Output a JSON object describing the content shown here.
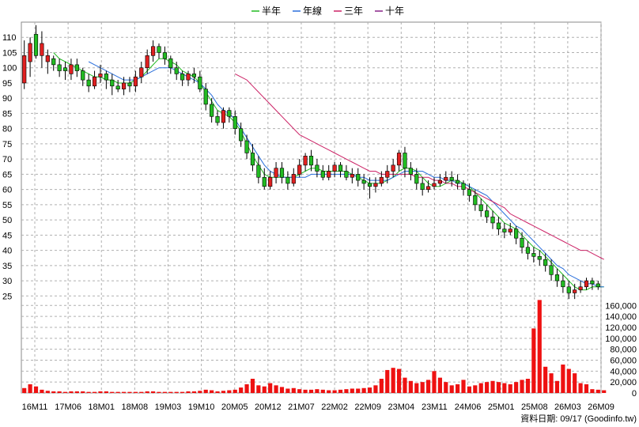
{
  "legend": [
    {
      "label": "半年",
      "color": "#22bb22"
    },
    {
      "label": "年線",
      "color": "#2a6fdb"
    },
    {
      "label": "三年",
      "color": "#cc2266"
    },
    {
      "label": "十年",
      "color": "#882288"
    }
  ],
  "footer": "資料日期: 09/17 (Goodinfo.tw)",
  "colors": {
    "up": "#e02020",
    "down": "#22bb22",
    "volume": "#ee1111",
    "grid": "#b0b0b0"
  },
  "chart_data": {
    "type": "candlestick",
    "price_ylim": [
      23,
      115
    ],
    "price_ticks": [
      25,
      30,
      35,
      40,
      45,
      50,
      55,
      60,
      65,
      70,
      75,
      80,
      85,
      90,
      95,
      100,
      105,
      110
    ],
    "volume_ylim": [
      0,
      172000
    ],
    "volume_ticks": [
      0,
      20000,
      40000,
      60000,
      80000,
      100000,
      120000,
      140000,
      160000
    ],
    "x_labels": [
      "16M11",
      "17M06",
      "18M01",
      "18M08",
      "19M03",
      "19M10",
      "20M05",
      "20M12",
      "21M07",
      "22M02",
      "22M09",
      "23M04",
      "23M11",
      "24M06",
      "25M01",
      "25M08",
      "26M03",
      "26M09"
    ],
    "candles": [
      [
        95,
        104,
        109,
        93
      ],
      [
        102,
        108,
        110,
        97
      ],
      [
        111,
        104,
        114,
        103
      ],
      [
        104,
        108,
        112,
        100
      ],
      [
        102,
        104,
        106,
        98
      ],
      [
        103,
        101,
        104,
        99
      ],
      [
        101,
        99,
        103,
        97
      ],
      [
        100,
        99,
        102,
        96
      ],
      [
        98,
        101,
        103,
        96
      ],
      [
        101,
        99,
        103,
        97
      ],
      [
        99,
        96,
        100,
        94
      ],
      [
        96,
        94,
        98,
        92
      ],
      [
        94,
        97,
        99,
        93
      ],
      [
        97,
        98,
        101,
        95
      ],
      [
        98,
        96,
        99,
        93
      ],
      [
        96,
        94,
        98,
        91
      ],
      [
        94,
        93,
        96,
        92
      ],
      [
        93,
        95,
        97,
        91
      ],
      [
        95,
        94,
        97,
        92
      ],
      [
        94,
        97,
        99,
        92
      ],
      [
        97,
        100,
        102,
        95
      ],
      [
        100,
        104,
        106,
        98
      ],
      [
        104,
        107,
        109,
        102
      ],
      [
        107,
        105,
        108,
        103
      ],
      [
        105,
        103,
        107,
        101
      ],
      [
        103,
        100,
        104,
        98
      ],
      [
        100,
        98,
        102,
        96
      ],
      [
        98,
        96,
        99,
        94
      ],
      [
        96,
        98,
        99,
        94
      ],
      [
        98,
        97,
        100,
        95
      ],
      [
        97,
        93,
        99,
        92
      ],
      [
        93,
        88,
        95,
        86
      ],
      [
        88,
        84,
        90,
        82
      ],
      [
        84,
        82,
        86,
        81
      ],
      [
        82,
        86,
        87,
        80
      ],
      [
        86,
        84,
        87,
        82
      ],
      [
        84,
        80,
        86,
        78
      ],
      [
        80,
        76,
        82,
        74
      ],
      [
        76,
        72,
        78,
        70
      ],
      [
        72,
        68,
        75,
        66
      ],
      [
        68,
        64,
        71,
        62
      ],
      [
        64,
        61,
        67,
        60
      ],
      [
        61,
        64,
        66,
        60
      ],
      [
        64,
        67,
        69,
        62
      ],
      [
        67,
        64,
        69,
        62
      ],
      [
        64,
        62,
        66,
        60
      ],
      [
        62,
        65,
        67,
        61
      ],
      [
        65,
        68,
        70,
        64
      ],
      [
        68,
        71,
        72,
        66
      ],
      [
        71,
        68,
        73,
        66
      ],
      [
        68,
        66,
        70,
        64
      ],
      [
        66,
        64,
        68,
        63
      ],
      [
        64,
        66,
        68,
        63
      ],
      [
        66,
        68,
        69,
        64
      ],
      [
        68,
        66,
        69,
        64
      ],
      [
        66,
        64,
        68,
        63
      ],
      [
        64,
        65,
        67,
        62
      ],
      [
        65,
        63,
        67,
        61
      ],
      [
        63,
        62,
        65,
        60
      ],
      [
        62,
        61,
        64,
        57
      ],
      [
        61,
        62,
        64,
        59
      ],
      [
        62,
        64,
        66,
        61
      ],
      [
        64,
        66,
        68,
        62
      ],
      [
        66,
        68,
        70,
        64
      ],
      [
        68,
        72,
        73,
        66
      ],
      [
        72,
        67,
        74,
        64
      ],
      [
        67,
        65,
        69,
        63
      ],
      [
        65,
        62,
        67,
        60
      ],
      [
        62,
        60,
        64,
        58
      ],
      [
        60,
        61,
        63,
        59
      ],
      [
        61,
        62,
        64,
        60
      ],
      [
        62,
        63,
        65,
        61
      ],
      [
        63,
        64,
        66,
        62
      ],
      [
        64,
        63,
        66,
        61
      ],
      [
        63,
        62,
        65,
        60
      ],
      [
        62,
        60,
        63,
        58
      ],
      [
        60,
        58,
        62,
        56
      ],
      [
        58,
        55,
        60,
        53
      ],
      [
        55,
        53,
        57,
        51
      ],
      [
        53,
        51,
        55,
        49
      ],
      [
        51,
        49,
        53,
        47
      ],
      [
        49,
        47,
        51,
        45
      ],
      [
        47,
        46,
        49,
        44
      ],
      [
        46,
        47,
        49,
        45
      ],
      [
        47,
        44,
        48,
        42
      ],
      [
        44,
        41,
        46,
        39
      ],
      [
        41,
        39,
        43,
        37
      ],
      [
        39,
        38,
        41,
        36
      ],
      [
        38,
        37,
        40,
        35
      ],
      [
        37,
        35,
        39,
        33
      ],
      [
        35,
        32,
        37,
        30
      ],
      [
        32,
        30,
        34,
        28
      ],
      [
        30,
        28,
        32,
        26
      ],
      [
        28,
        26,
        30,
        24
      ],
      [
        26,
        27,
        29,
        24
      ],
      [
        27,
        28,
        30,
        26
      ],
      [
        28,
        30,
        31,
        27
      ],
      [
        30,
        29,
        31,
        27
      ],
      [
        29,
        28,
        30,
        27
      ]
    ],
    "volumes": [
      9000,
      16000,
      12000,
      6000,
      4000,
      3000,
      3000,
      2000,
      3000,
      3000,
      3000,
      2000,
      2000,
      3000,
      3000,
      2000,
      2000,
      2000,
      2000,
      2000,
      2000,
      3000,
      3000,
      2000,
      2000,
      2000,
      2000,
      2000,
      3000,
      3000,
      4000,
      6000,
      5000,
      3000,
      4000,
      5000,
      6000,
      10000,
      16000,
      26000,
      14000,
      12000,
      18000,
      14000,
      11000,
      8000,
      9000,
      7000,
      6000,
      6000,
      7000,
      6000,
      5000,
      5000,
      6000,
      7000,
      8000,
      8000,
      9000,
      10000,
      14000,
      26000,
      42000,
      46000,
      44000,
      28000,
      22000,
      18000,
      20000,
      24000,
      40000,
      28000,
      20000,
      14000,
      16000,
      24000,
      12000,
      14000,
      18000,
      20000,
      22000,
      20000,
      18000,
      16000,
      20000,
      24000,
      26000,
      118000,
      170000,
      48000,
      36000,
      22000,
      52000,
      44000,
      36000,
      18000,
      16000,
      7000,
      6000,
      5000
    ],
    "ma_half": [
      null,
      null,
      null,
      null,
      null,
      105,
      103,
      102,
      101,
      100,
      99,
      98,
      97,
      97,
      96,
      96,
      95,
      95,
      95,
      96,
      97,
      99,
      101,
      103,
      103,
      102,
      101,
      99,
      98,
      97,
      95,
      92,
      89,
      86,
      85,
      84,
      82,
      79,
      75,
      71,
      68,
      65,
      64,
      64,
      64,
      64,
      64,
      65,
      66,
      67,
      67,
      66,
      66,
      66,
      66,
      66,
      65,
      64,
      63,
      62,
      62,
      62,
      63,
      64,
      66,
      67,
      67,
      66,
      64,
      62,
      61,
      61,
      62,
      63,
      63,
      62,
      61,
      59,
      57,
      55,
      53,
      51,
      49,
      48,
      47,
      45,
      43,
      41,
      40,
      38,
      36,
      34,
      32,
      30,
      28,
      27,
      27,
      28,
      28,
      28
    ],
    "ma_year": [
      null,
      null,
      null,
      null,
      null,
      null,
      null,
      null,
      null,
      null,
      null,
      102,
      101,
      100,
      99,
      98,
      97,
      96,
      96,
      96,
      97,
      98,
      99,
      100,
      100,
      100,
      99,
      98,
      97,
      96,
      95,
      93,
      91,
      88,
      86,
      85,
      83,
      80,
      77,
      74,
      71,
      68,
      66,
      65,
      64,
      64,
      64,
      64,
      64,
      65,
      65,
      65,
      65,
      65,
      65,
      65,
      65,
      64,
      64,
      63,
      63,
      63,
      63,
      64,
      65,
      66,
      66,
      66,
      66,
      65,
      64,
      64,
      63,
      63,
      62,
      62,
      61,
      60,
      59,
      58,
      56,
      54,
      52,
      50,
      48,
      47,
      45,
      43,
      41,
      39,
      37,
      35,
      34,
      32,
      31,
      30,
      29,
      29,
      28,
      28
    ],
    "ma_3y": [
      null,
      null,
      null,
      null,
      null,
      null,
      null,
      null,
      null,
      null,
      null,
      null,
      null,
      null,
      null,
      null,
      null,
      null,
      null,
      null,
      null,
      null,
      null,
      null,
      null,
      null,
      null,
      null,
      null,
      null,
      null,
      null,
      null,
      null,
      null,
      null,
      98,
      97,
      96,
      94,
      92,
      90,
      88,
      86,
      84,
      82,
      80,
      78,
      77,
      76,
      75,
      74,
      73,
      72,
      71,
      70,
      69,
      68,
      67,
      66,
      66,
      65,
      65,
      65,
      65,
      65,
      65,
      64,
      64,
      64,
      63,
      63,
      62,
      62,
      61,
      61,
      60,
      59,
      58,
      57,
      56,
      55,
      54,
      52,
      51,
      50,
      49,
      48,
      47,
      46,
      45,
      44,
      43,
      42,
      41,
      40,
      40,
      39,
      38,
      37
    ]
  }
}
